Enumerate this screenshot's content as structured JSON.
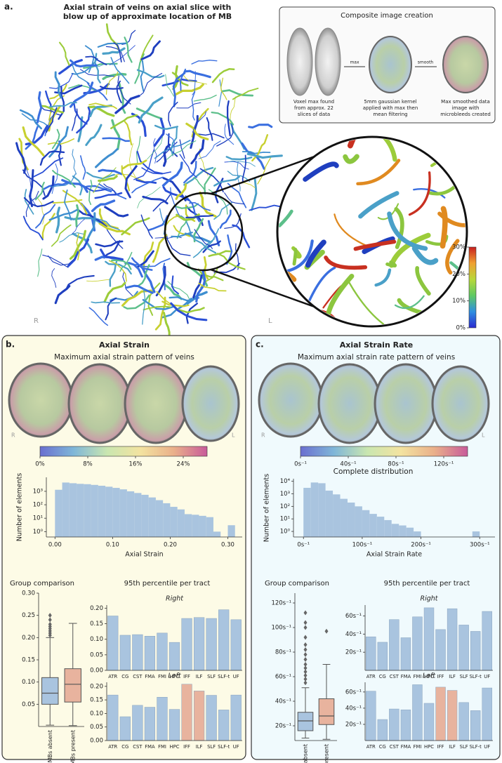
{
  "panel_a": {
    "label": "a.",
    "title_lines": [
      "Axial strain of veins on axial slice with",
      "blow up of approximate location of MB"
    ],
    "left": "R",
    "right": "L",
    "composite": {
      "title": "Composite image creation",
      "arrow_1": "max",
      "arrow_2": "smooth",
      "captions": [
        [
          "Voxel max found",
          "from approx. 22",
          "slices of data"
        ],
        [
          "5mm gaussian kernel",
          "applied with max then",
          "mean filtering"
        ],
        [
          "Max smoothed data",
          "image with",
          "microbleeds created"
        ]
      ]
    }
  },
  "panel_b": {
    "label": "b.",
    "title": "Axial Strain",
    "subtitle": "Maximum axial strain pattern of veins",
    "left": "R",
    "right": "L",
    "group_title": "Group comparison",
    "tract_title": "95th percentile per tract"
  },
  "panel_c": {
    "label": "c.",
    "title": "Axial Strain Rate",
    "subtitle": "Maximum axial strain rate pattern of veins",
    "left": "R",
    "right": "L",
    "group_title": "Group comparison",
    "tract_title": "95th percentile per tract"
  },
  "chart_data": [
    {
      "type": "colorbar",
      "orientation": "vertical",
      "colors": [
        "#2a2ad0",
        "#2f8fe0",
        "#5ec962",
        "#b8d83a",
        "#f0a030",
        "#c81e1e"
      ],
      "ylim": [
        0,
        30
      ],
      "yticks": [
        {
          "value": 0,
          "label": "0%"
        },
        {
          "value": 10,
          "label": "10%"
        },
        {
          "value": 20,
          "label": "20%"
        },
        {
          "value": 30,
          "label": "30%"
        }
      ]
    },
    {
      "type": "colorbar",
      "orientation": "horizontal",
      "colors": [
        "#6a6fd0",
        "#7fb6d8",
        "#c9e6b0",
        "#f3e3a0",
        "#eab08a",
        "#c85b9a"
      ],
      "xlim": [
        0,
        28
      ],
      "xticks": [
        {
          "value": 0,
          "label": "0%"
        },
        {
          "value": 8,
          "label": "8%"
        },
        {
          "value": 16,
          "label": "16%"
        },
        {
          "value": 24,
          "label": "24%"
        }
      ]
    },
    {
      "type": "histogram",
      "xlabel": "Axial Strain",
      "ylabel": "Number of elements",
      "color": "#a9c4df",
      "log": true,
      "bins": [
        0,
        0.0125,
        0.025,
        0.0375,
        0.05,
        0.0625,
        0.075,
        0.0875,
        0.1,
        0.1125,
        0.125,
        0.1375,
        0.15,
        0.1625,
        0.175,
        0.1875,
        0.2,
        0.2125,
        0.225,
        0.2375,
        0.25,
        0.2625,
        0.275,
        0.2875,
        0.3,
        0.3125
      ],
      "counts": [
        1300,
        4500,
        4000,
        3600,
        3400,
        3000,
        2600,
        2200,
        1800,
        1400,
        1000,
        750,
        550,
        350,
        220,
        130,
        70,
        45,
        20,
        18,
        15,
        12,
        1,
        0,
        3
      ],
      "xlim": [
        -0.015,
        0.325
      ],
      "xticks": [
        {
          "value": 0,
          "label": "0.00"
        },
        {
          "value": 0.1,
          "label": "0.10"
        },
        {
          "value": 0.2,
          "label": "0.20"
        },
        {
          "value": 0.3,
          "label": "0.30"
        }
      ],
      "ylim": [
        0.4,
        11000
      ],
      "yticks": [
        {
          "value": 1,
          "label": "10⁰"
        },
        {
          "value": 10,
          "label": "10¹"
        },
        {
          "value": 100,
          "label": "10²"
        },
        {
          "value": 1000,
          "label": "10³"
        }
      ]
    },
    {
      "type": "box",
      "title": "Group comparison",
      "boxes": [
        {
          "name": "MBs absent",
          "color": "#a9c4df",
          "whisker_low": 0.003,
          "q1": 0.05,
          "median": 0.075,
          "q3": 0.11,
          "whisker_high": 0.2,
          "outliers": [
            0.205,
            0.21,
            0.215,
            0.22,
            0.225,
            0.23,
            0.24,
            0.25
          ]
        },
        {
          "name": "MBs present",
          "color": "#e8b39e",
          "whisker_low": 0.002,
          "q1": 0.055,
          "median": 0.095,
          "q3": 0.13,
          "whisker_high": 0.232,
          "outliers": []
        }
      ],
      "ylim": [
        0,
        0.3
      ],
      "yticks": [
        {
          "value": 0.05,
          "label": "0.05"
        },
        {
          "value": 0.1,
          "label": "0.10"
        },
        0.15,
        {
          "value": 0.2,
          "label": "0.20"
        },
        0.25,
        {
          "value": 0.3,
          "label": "0.30"
        }
      ]
    },
    {
      "type": "bar",
      "title": "Right",
      "categories": [
        "ATR",
        "CG",
        "CST",
        "FMA",
        "FMI",
        "HPC",
        "IFF",
        "ILF",
        "SLF",
        "SLF-t",
        "UF"
      ],
      "values": [
        0.175,
        0.113,
        0.115,
        0.11,
        0.12,
        0.09,
        0.167,
        0.17,
        0.167,
        0.195,
        0.163
      ],
      "colors": [
        "#a9c4df",
        "#a9c4df",
        "#a9c4df",
        "#a9c4df",
        "#a9c4df",
        "#a9c4df",
        "#a9c4df",
        "#a9c4df",
        "#a9c4df",
        "#a9c4df",
        "#a9c4df"
      ],
      "ylim": [
        0,
        0.21
      ],
      "yticks": [
        {
          "value": 0,
          "label": "0.00"
        },
        0.05,
        {
          "value": 0.1,
          "label": "0.10"
        },
        0.15,
        {
          "value": 0.2,
          "label": "0.20"
        }
      ]
    },
    {
      "type": "bar",
      "title": "Left",
      "categories": [
        "ATR",
        "CG",
        "CST",
        "FMA",
        "FMI",
        "HPC",
        "IFF",
        "ILF",
        "SLF",
        "SLF-t",
        "UF"
      ],
      "values": [
        0.168,
        0.088,
        0.13,
        0.123,
        0.16,
        0.115,
        0.208,
        0.183,
        0.167,
        0.113,
        0.168
      ],
      "colors": [
        "#a9c4df",
        "#a9c4df",
        "#a9c4df",
        "#a9c4df",
        "#a9c4df",
        "#a9c4df",
        "#e8b39e",
        "#e8b39e",
        "#a9c4df",
        "#a9c4df",
        "#a9c4df"
      ],
      "ylim": [
        0,
        0.215
      ],
      "yticks": [
        {
          "value": 0,
          "label": "0.00"
        },
        0.05,
        {
          "value": 0.1,
          "label": "0.10"
        },
        0.15,
        {
          "value": 0.2,
          "label": "0.20"
        }
      ]
    },
    {
      "type": "colorbar",
      "orientation": "horizontal",
      "colors": [
        "#6a6fd0",
        "#7fb6d8",
        "#c9e6b0",
        "#f3e3a0",
        "#eab08a",
        "#c85b9a"
      ],
      "xlim": [
        0,
        140
      ],
      "xticks": [
        {
          "value": 0,
          "label": "0s⁻¹"
        },
        {
          "value": 40,
          "label": "40s⁻¹"
        },
        {
          "value": 80,
          "label": "80s⁻¹"
        },
        {
          "value": 120,
          "label": "120s⁻¹"
        }
      ]
    },
    {
      "type": "histogram",
      "title": "Complete distribution",
      "xlabel": "Axial Strain Rate",
      "ylabel": "Number of elements",
      "color": "#a9c4df",
      "log": true,
      "bins": [
        0,
        12.5,
        25,
        37.5,
        50,
        62.5,
        75,
        87.5,
        100,
        112.5,
        125,
        137.5,
        150,
        162.5,
        175,
        187.5,
        200,
        212.5,
        225,
        237.5,
        250,
        262.5,
        275,
        287.5,
        300
      ],
      "counts": [
        3000,
        8000,
        7000,
        1800,
        900,
        400,
        200,
        100,
        50,
        25,
        15,
        8,
        4,
        3,
        2,
        1,
        0,
        0,
        0,
        0,
        0,
        0,
        0,
        1
      ],
      "xlim": [
        -17,
        326
      ],
      "xticks": [
        {
          "value": 0,
          "label": "0s⁻¹"
        },
        {
          "value": 100,
          "label": "100s⁻¹"
        },
        {
          "value": 200,
          "label": "200s⁻¹"
        },
        {
          "value": 300,
          "label": "300s⁻¹"
        }
      ],
      "ylim": [
        0.36,
        16000
      ],
      "yticks": [
        {
          "value": 1,
          "label": "10⁰"
        },
        {
          "value": 10,
          "label": "10¹"
        },
        {
          "value": 100,
          "label": "10²"
        },
        {
          "value": 1000,
          "label": "10³"
        },
        {
          "value": 10000,
          "label": "10⁴"
        }
      ]
    },
    {
      "type": "box",
      "title": "Group comparison",
      "boxes": [
        {
          "name": "MBs absent",
          "color": "#a9c4df",
          "whisker_low": 10,
          "q1": 16,
          "median": 24,
          "q3": 31,
          "whisker_high": 51,
          "outliers": [
            55,
            58,
            61,
            64,
            67,
            70,
            74,
            78,
            82,
            86,
            92,
            100,
            104,
            112
          ]
        },
        {
          "name": "MBs present",
          "color": "#e8b39e",
          "whisker_low": 9,
          "q1": 21,
          "median": 28,
          "q3": 42,
          "whisker_high": 70,
          "outliers": [
            97
          ]
        }
      ],
      "ylim": [
        8,
        128
      ],
      "yticks": [
        {
          "value": 20,
          "label": "20s⁻¹"
        },
        {
          "value": 40,
          "label": "40s⁻¹"
        },
        {
          "value": 60,
          "label": "60s⁻¹"
        },
        {
          "value": 80,
          "label": "80s⁻¹"
        },
        {
          "value": 100,
          "label": "100s⁻¹"
        },
        {
          "value": 120,
          "label": "120s⁻¹"
        }
      ]
    },
    {
      "type": "bar",
      "title": "Right",
      "categories": [
        "ATR",
        "CG",
        "CST",
        "FMA",
        "FMI",
        "HPC",
        "IFF",
        "ILF",
        "SLF",
        "SLF-t",
        "UF"
      ],
      "values": [
        37,
        31,
        56,
        36,
        59,
        69,
        45,
        68,
        50,
        43,
        65
      ],
      "colors": [
        "#a9c4df",
        "#a9c4df",
        "#a9c4df",
        "#a9c4df",
        "#a9c4df",
        "#a9c4df",
        "#a9c4df",
        "#a9c4df",
        "#a9c4df",
        "#a9c4df",
        "#a9c4df"
      ],
      "ylim": [
        0,
        72
      ],
      "yticks": [
        {
          "value": 20,
          "label": "20s⁻¹"
        },
        {
          "value": 40,
          "label": "40s⁻¹"
        },
        {
          "value": 60,
          "label": "60s⁻¹"
        }
      ]
    },
    {
      "type": "bar",
      "title": "Left",
      "categories": [
        "ATR",
        "CG",
        "CST",
        "FMA",
        "FMI",
        "HPC",
        "IFF",
        "ILF",
        "SLF",
        "SLF-t",
        "UF"
      ],
      "values": [
        61,
        26,
        39,
        38,
        69,
        46,
        66,
        62,
        47,
        37,
        65
      ],
      "colors": [
        "#a9c4df",
        "#a9c4df",
        "#a9c4df",
        "#a9c4df",
        "#a9c4df",
        "#a9c4df",
        "#e8b39e",
        "#e8b39e",
        "#a9c4df",
        "#a9c4df",
        "#a9c4df"
      ],
      "ylim": [
        0,
        72
      ],
      "yticks": [
        {
          "value": 20,
          "label": "20s⁻¹"
        },
        {
          "value": 40,
          "label": "40s⁻¹"
        },
        {
          "value": 60,
          "label": "60s⁻¹"
        }
      ]
    }
  ]
}
